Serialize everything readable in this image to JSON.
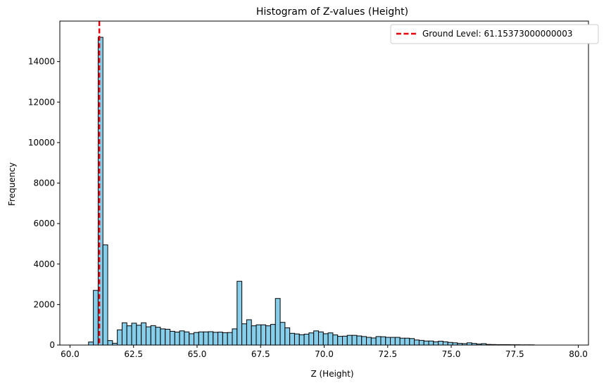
{
  "chart_data": {
    "type": "bar",
    "title": "Histogram of Z-values (Height)",
    "xlabel": "Z (Height)",
    "ylabel": "Frequency",
    "xlim": [
      59.6,
      80.4
    ],
    "ylim": [
      0,
      16000
    ],
    "xticks": [
      60.0,
      62.5,
      65.0,
      67.5,
      70.0,
      72.5,
      75.0,
      77.5,
      80.0
    ],
    "xtick_labels": [
      "60.0",
      "62.5",
      "65.0",
      "67.5",
      "70.0",
      "72.5",
      "75.0",
      "77.5",
      "80.0"
    ],
    "yticks": [
      0,
      2000,
      4000,
      6000,
      8000,
      10000,
      12000,
      14000
    ],
    "ytick_labels": [
      "0",
      "2000",
      "4000",
      "6000",
      "8000",
      "10000",
      "12000",
      "14000"
    ],
    "grid": false,
    "legend_position": "top-right",
    "bin_start": 60.73,
    "bin_width": 0.1885,
    "bar_color": "#87ceeb",
    "edge_color": "#000000",
    "values": [
      150,
      2700,
      15200,
      4950,
      220,
      90,
      750,
      1100,
      950,
      1080,
      980,
      1100,
      900,
      960,
      880,
      800,
      780,
      680,
      640,
      700,
      650,
      560,
      620,
      650,
      650,
      660,
      630,
      640,
      610,
      620,
      800,
      3150,
      1050,
      1250,
      950,
      1000,
      1000,
      950,
      1020,
      2300,
      1120,
      850,
      580,
      550,
      510,
      540,
      600,
      700,
      650,
      560,
      600,
      500,
      430,
      440,
      480,
      480,
      450,
      420,
      380,
      350,
      420,
      410,
      380,
      380,
      380,
      340,
      340,
      320,
      250,
      230,
      200,
      200,
      160,
      190,
      160,
      130,
      110,
      80,
      70,
      110,
      80,
      50,
      70,
      30,
      25,
      20,
      20,
      20,
      15,
      15,
      10,
      10,
      10
    ],
    "reference_line": {
      "x": 61.15373000000003,
      "color": "#e8000b",
      "style": "dashed",
      "label": "Ground Level: 61.15373000000003"
    }
  }
}
